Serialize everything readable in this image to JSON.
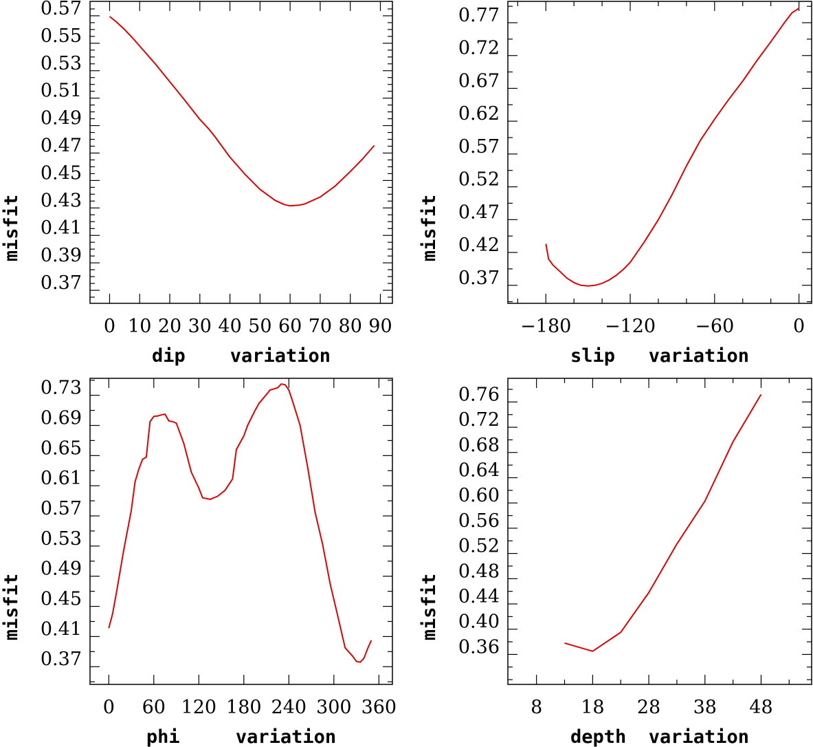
{
  "chart_data": [
    {
      "type": "line",
      "xlabel": "dip    variation",
      "ylabel": "misfit",
      "xlim": [
        -6.5,
        94
      ],
      "ylim": [
        0.3605,
        0.5805
      ],
      "xticks": [
        0,
        10,
        20,
        30,
        40,
        50,
        60,
        70,
        80,
        90
      ],
      "xticklabels": [
        "0",
        "10",
        "20",
        "30",
        "40",
        "50",
        "60",
        "70",
        "80",
        "90"
      ],
      "xminor": [],
      "yticks": [
        0.37,
        0.39,
        0.41,
        0.43,
        0.45,
        0.47,
        0.49,
        0.51,
        0.53,
        0.55,
        0.57
      ],
      "yticklabels": [
        "0.37",
        "0.39",
        "0.41",
        "0.43",
        "0.45",
        "0.47",
        "0.49",
        "0.51",
        "0.53",
        "0.55",
        "0.57"
      ],
      "yminor": [
        0.365,
        0.375,
        0.38,
        0.385,
        0.395,
        0.4,
        0.405,
        0.415,
        0.42,
        0.425,
        0.435,
        0.44,
        0.445,
        0.455,
        0.46,
        0.465,
        0.475,
        0.48,
        0.485,
        0.495,
        0.5,
        0.505,
        0.515,
        0.52,
        0.525,
        0.535,
        0.54,
        0.545,
        0.555,
        0.56,
        0.565,
        0.575
      ],
      "series": [
        {
          "name": "misfit",
          "x": [
            0,
            2,
            5,
            8,
            10,
            15,
            20,
            25,
            30,
            33,
            35,
            40,
            45,
            50,
            55,
            58,
            60,
            63,
            65,
            70,
            75,
            80,
            84,
            88
          ],
          "y": [
            0.5695,
            0.566,
            0.56,
            0.553,
            0.548,
            0.5355,
            0.522,
            0.5085,
            0.4945,
            0.4875,
            0.482,
            0.467,
            0.4545,
            0.4435,
            0.4355,
            0.4325,
            0.4315,
            0.432,
            0.433,
            0.438,
            0.446,
            0.4565,
            0.4655,
            0.4755
          ]
        }
      ]
    },
    {
      "type": "line",
      "xlabel": "slip   variation",
      "ylabel": "misfit",
      "xlim": [
        -207,
        9
      ],
      "ylim": [
        0.3425,
        0.8025
      ],
      "xticks": [
        -180,
        -120,
        -60,
        0
      ],
      "xticklabels": [
        "−180",
        "−120",
        "−60",
        "0"
      ],
      "xminor": [
        -200,
        -160,
        -140,
        -100,
        -80,
        -40,
        -20
      ],
      "yticks": [
        0.37,
        0.42,
        0.47,
        0.52,
        0.57,
        0.62,
        0.67,
        0.72,
        0.77
      ],
      "yticklabels": [
        "0.37",
        "0.42",
        "0.47",
        "0.52",
        "0.57",
        "0.62",
        "0.67",
        "0.72",
        "0.77"
      ],
      "yminor": [
        0.345,
        0.395,
        0.445,
        0.495,
        0.545,
        0.595,
        0.645,
        0.695,
        0.745,
        0.795
      ],
      "series": [
        {
          "name": "misfit",
          "x": [
            -180,
            -178,
            -175,
            -170,
            -165,
            -160,
            -155,
            -150,
            -145,
            -140,
            -135,
            -130,
            -125,
            -120,
            -110,
            -100,
            -90,
            -80,
            -70,
            -60,
            -50,
            -40,
            -30,
            -20,
            -10,
            -5,
            0
          ],
          "y": [
            0.433,
            0.41,
            0.401,
            0.391,
            0.381,
            0.374,
            0.37,
            0.369,
            0.37,
            0.373,
            0.378,
            0.385,
            0.394,
            0.405,
            0.436,
            0.47,
            0.509,
            0.552,
            0.591,
            0.623,
            0.653,
            0.681,
            0.712,
            0.741,
            0.771,
            0.785,
            0.792
          ]
        }
      ]
    },
    {
      "type": "line",
      "xlabel": "phi     variation",
      "ylabel": "misfit",
      "xlim": [
        -25,
        378
      ],
      "ylim": [
        0.3465,
        0.7525
      ],
      "xticks": [
        0,
        60,
        120,
        180,
        240,
        300,
        360
      ],
      "xticklabels": [
        "0",
        "60",
        "120",
        "180",
        "240",
        "300",
        "360"
      ],
      "xminor": [],
      "yticks": [
        0.37,
        0.41,
        0.45,
        0.49,
        0.53,
        0.57,
        0.61,
        0.65,
        0.69,
        0.73
      ],
      "yticklabels": [
        "0.37",
        "0.41",
        "0.45",
        "0.49",
        "0.53",
        "0.57",
        "0.61",
        "0.65",
        "0.69",
        "0.73"
      ],
      "yminor": [
        0.35,
        0.39,
        0.43,
        0.47,
        0.51,
        0.55,
        0.59,
        0.63,
        0.67,
        0.71,
        0.75
      ],
      "series": [
        {
          "name": "misfit",
          "x": [
            0,
            5,
            10,
            20,
            30,
            35,
            40,
            45,
            50,
            55,
            60,
            65,
            70,
            75,
            80,
            85,
            90,
            100,
            110,
            120,
            125,
            135,
            145,
            155,
            165,
            170,
            180,
            185,
            195,
            200,
            210,
            215,
            225,
            230,
            235,
            240,
            245,
            255,
            265,
            275,
            285,
            295,
            305,
            315,
            325,
            330,
            335,
            340,
            345,
            350
          ],
          "y": [
            0.421,
            0.44,
            0.467,
            0.525,
            0.577,
            0.615,
            0.632,
            0.645,
            0.648,
            0.695,
            0.702,
            0.7025,
            0.704,
            0.705,
            0.696,
            0.695,
            0.693,
            0.666,
            0.628,
            0.607,
            0.594,
            0.592,
            0.596,
            0.604,
            0.619,
            0.658,
            0.676,
            0.69,
            0.71,
            0.719,
            0.731,
            0.737,
            0.74,
            0.745,
            0.744,
            0.737,
            0.722,
            0.69,
            0.635,
            0.575,
            0.532,
            0.48,
            0.438,
            0.395,
            0.384,
            0.377,
            0.376,
            0.381,
            0.394,
            0.405
          ]
        }
      ]
    },
    {
      "type": "line",
      "xlabel": "depth  variation",
      "ylabel": "misfit",
      "xlim": [
        2.9,
        57
      ],
      "ylim": [
        0.3125,
        0.7975
      ],
      "xticks": [
        8,
        18,
        28,
        38,
        48
      ],
      "xticklabels": [
        "8",
        "18",
        "28",
        "38",
        "48"
      ],
      "xminor": [
        13,
        23,
        33,
        43,
        53
      ],
      "yticks": [
        0.36,
        0.4,
        0.44,
        0.48,
        0.52,
        0.56,
        0.6,
        0.64,
        0.68,
        0.72,
        0.76
      ],
      "yticklabels": [
        "0.36",
        "0.40",
        "0.44",
        "0.48",
        "0.52",
        "0.56",
        "0.60",
        "0.64",
        "0.68",
        "0.72",
        "0.76"
      ],
      "yminor": [
        0.32,
        0.34,
        0.38,
        0.42,
        0.46,
        0.5,
        0.54,
        0.58,
        0.62,
        0.66,
        0.7,
        0.74,
        0.78
      ],
      "series": [
        {
          "name": "misfit",
          "x": [
            13,
            18,
            23,
            28,
            33,
            38,
            43,
            48
          ],
          "y": [
            0.378,
            0.365,
            0.395,
            0.458,
            0.535,
            0.603,
            0.697,
            0.772
          ]
        }
      ]
    }
  ]
}
